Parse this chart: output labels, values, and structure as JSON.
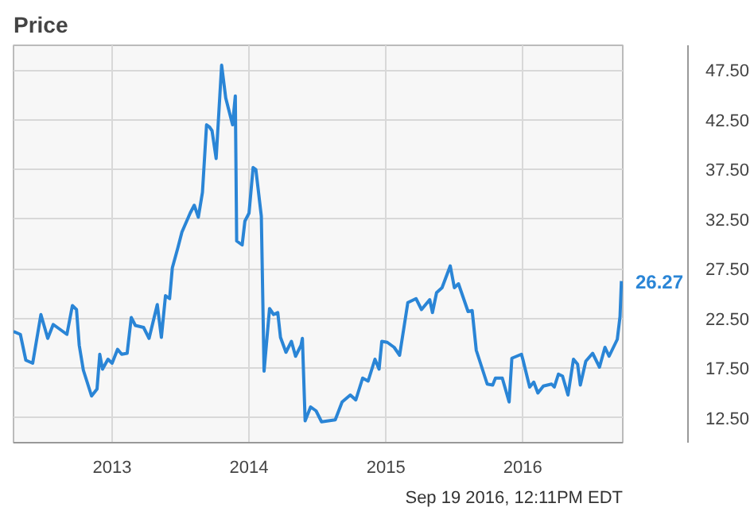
{
  "chart_data": {
    "type": "line",
    "title": "Price",
    "annotations": [
      "Sep 19 2016, 12:11PM EDT"
    ],
    "x": [
      2012.28,
      2012.33,
      2012.37,
      2012.42,
      2012.48,
      2012.53,
      2012.57,
      2012.63,
      2012.67,
      2012.71,
      2012.74,
      2012.76,
      2012.79,
      2012.85,
      2012.89,
      2012.91,
      2012.93,
      2012.97,
      2013.0,
      2013.04,
      2013.07,
      2013.11,
      2013.14,
      2013.17,
      2013.23,
      2013.27,
      2013.33,
      2013.36,
      2013.39,
      2013.42,
      2013.44,
      2013.48,
      2013.51,
      2013.57,
      2013.6,
      2013.63,
      2013.66,
      2013.69,
      2013.71,
      2013.73,
      2013.76,
      2013.8,
      2013.83,
      2013.88,
      2013.9,
      2013.91,
      2013.95,
      2013.97,
      2014.0,
      2014.03,
      2014.05,
      2014.09,
      2014.11,
      2014.15,
      2014.18,
      2014.21,
      2014.23,
      2014.27,
      2014.31,
      2014.34,
      2014.38,
      2014.39,
      2014.41,
      2014.45,
      2014.49,
      2014.53,
      2014.63,
      2014.68,
      2014.74,
      2014.78,
      2014.83,
      2014.87,
      2014.92,
      2014.95,
      2014.97,
      2015.01,
      2015.06,
      2015.1,
      2015.16,
      2015.22,
      2015.26,
      2015.32,
      2015.34,
      2015.37,
      2015.41,
      2015.47,
      2015.5,
      2015.53,
      2015.6,
      2015.63,
      2015.66,
      2015.74,
      2015.78,
      2015.8,
      2015.85,
      2015.9,
      2015.92,
      2015.99,
      2016.0,
      2016.05,
      2016.08,
      2016.11,
      2016.15,
      2016.21,
      2016.23,
      2016.26,
      2016.29,
      2016.33,
      2016.37,
      2016.4,
      2016.42,
      2016.46,
      2016.51,
      2016.56,
      2016.6,
      2016.63,
      2016.69,
      2016.71,
      2016.72
    ],
    "series": [
      {
        "color": "#2a85d6",
        "values": [
          21.2,
          20.9,
          18.3,
          18.0,
          22.9,
          20.5,
          21.9,
          21.3,
          20.9,
          23.8,
          23.4,
          19.8,
          17.3,
          14.7,
          15.4,
          18.9,
          17.4,
          18.4,
          18.0,
          19.4,
          18.9,
          19.0,
          22.6,
          21.8,
          21.6,
          20.5,
          23.9,
          20.6,
          24.8,
          24.5,
          27.6,
          29.6,
          31.2,
          33.1,
          33.9,
          32.7,
          35.2,
          42.0,
          41.8,
          41.4,
          38.6,
          48.0,
          44.7,
          42.0,
          44.9,
          30.3,
          29.9,
          32.3,
          33.1,
          37.7,
          37.5,
          32.8,
          17.2,
          23.5,
          22.9,
          23.1,
          20.6,
          19.1,
          20.2,
          18.7,
          19.8,
          20.5,
          12.2,
          13.6,
          13.2,
          12.1,
          12.3,
          14.1,
          14.8,
          14.3,
          16.5,
          16.2,
          18.4,
          17.4,
          20.2,
          20.1,
          19.6,
          18.8,
          24.1,
          24.5,
          23.4,
          24.4,
          23.1,
          25.1,
          25.6,
          27.8,
          25.6,
          26.0,
          23.2,
          23.3,
          19.3,
          15.9,
          15.8,
          16.5,
          16.5,
          14.1,
          18.5,
          18.9,
          18.4,
          15.6,
          16.1,
          15.0,
          15.7,
          15.9,
          15.6,
          16.9,
          16.7,
          14.8,
          18.4,
          17.9,
          15.8,
          18.2,
          19.0,
          17.6,
          19.6,
          18.7,
          20.4,
          22.7,
          26.27
        ],
        "value_labels": [
          null,
          null,
          null,
          null,
          null,
          null,
          null,
          null,
          null,
          null,
          null,
          null,
          null,
          null,
          null,
          null,
          null,
          null,
          null,
          null,
          null,
          null,
          null,
          null,
          null,
          null,
          null,
          null,
          null,
          null,
          null,
          null,
          null,
          null,
          null,
          null,
          null,
          null,
          null,
          null,
          null,
          null,
          null,
          null,
          null,
          null,
          null,
          null,
          null,
          null,
          null,
          null,
          null,
          null,
          null,
          null,
          null,
          null,
          null,
          null,
          null,
          null,
          null,
          null,
          null,
          null,
          null,
          null,
          null,
          null,
          null,
          null,
          null,
          null,
          null,
          null,
          null,
          null,
          null,
          null,
          null,
          null,
          null,
          null,
          null,
          null,
          null,
          null,
          null,
          null,
          null,
          null,
          null,
          null,
          null,
          null,
          null,
          null,
          null,
          null,
          null,
          null,
          null,
          null,
          null,
          null,
          null,
          null,
          null,
          null,
          null,
          null,
          null,
          null,
          null,
          null,
          null,
          null,
          "26.27"
        ]
      }
    ],
    "xlim": [
      2012.28,
      2016.73
    ],
    "ylim": [
      10,
      50
    ],
    "xticks": [
      2013,
      2014,
      2015,
      2016
    ],
    "yticks": [
      {
        "value": 12.5,
        "label": "12.50"
      },
      {
        "value": 17.5,
        "label": "17.50"
      },
      {
        "value": 22.5,
        "label": "22.50"
      },
      {
        "value": 27.5,
        "label": "27.50"
      },
      {
        "value": 32.5,
        "label": "32.50"
      },
      {
        "value": 37.5,
        "label": "37.50"
      },
      {
        "value": 42.5,
        "label": "42.50"
      },
      {
        "value": 47.5,
        "label": "47.50"
      }
    ],
    "grid": true,
    "marker": "none",
    "line_style": "solid"
  }
}
